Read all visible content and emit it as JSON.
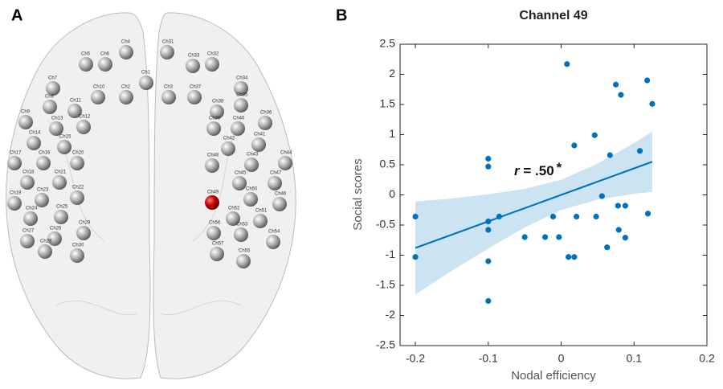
{
  "panel_a": {
    "label": "A",
    "channels": [
      "Ch4",
      "Ch5",
      "Ch6",
      "Ch1",
      "Ch7",
      "Ch10",
      "Ch2",
      "Ch8",
      "Ch11",
      "Ch9",
      "Ch12",
      "Ch13",
      "Ch14",
      "Ch15",
      "Ch16",
      "Ch20",
      "Ch17",
      "Ch18",
      "Ch21",
      "Ch22",
      "Ch23",
      "Ch19",
      "Ch24",
      "Ch25",
      "Ch29",
      "Ch27",
      "Ch26",
      "Ch30",
      "Ch28",
      "Ch31",
      "Ch33",
      "Ch32",
      "Ch3",
      "Ch37",
      "Ch34",
      "Ch35",
      "Ch38",
      "Ch36",
      "Ch39",
      "Ch40",
      "Ch41",
      "Ch42",
      "Ch43",
      "Ch44",
      "Ch48",
      "Ch45",
      "Ch47",
      "Ch49",
      "Ch50",
      "Ch46",
      "Ch52",
      "Ch51",
      "Ch56",
      "Ch53",
      "Ch54",
      "Ch57",
      "Ch55"
    ],
    "highlighted": "Ch49",
    "highlight_color": "#c00000"
  },
  "chart_data": {
    "type": "scatter",
    "panel_label": "B",
    "title": "Channel 49",
    "xlabel": "Nodal efficiency",
    "ylabel": "Social scores",
    "color": "#0072bd",
    "x": [
      -0.2,
      -0.2,
      -0.1,
      -0.1,
      -0.1,
      -0.1,
      -0.1,
      -0.1,
      -0.085,
      -0.05,
      -0.022,
      -0.011,
      -0.003,
      0.008,
      0.01,
      0.018,
      0.018,
      0.021,
      0.048,
      0.046,
      0.056,
      0.063,
      0.067,
      0.075,
      0.078,
      0.079,
      0.082,
      0.088,
      0.088,
      0.108,
      0.118,
      0.119,
      0.125
    ],
    "values": [
      -0.36,
      -1.03,
      0.6,
      0.47,
      -0.44,
      -0.58,
      -1.1,
      -1.76,
      -0.36,
      -0.7,
      -0.7,
      -0.36,
      -0.7,
      2.17,
      -1.03,
      -1.03,
      0.82,
      -0.36,
      -0.36,
      0.99,
      -0.02,
      -0.87,
      0.66,
      1.83,
      -0.18,
      -0.58,
      1.66,
      -0.18,
      -0.71,
      0.73,
      1.9,
      -0.31,
      1.51
    ],
    "fit": {
      "x": [
        -0.2,
        -0.15,
        -0.1,
        -0.05,
        0,
        0.05,
        0.1,
        0.125
      ],
      "y": [
        -0.88,
        -0.66,
        -0.44,
        -0.22,
        0,
        0.22,
        0.44,
        0.55
      ],
      "upper": [
        -0.11,
        -0.06,
        0.01,
        0.1,
        0.25,
        0.52,
        0.86,
        1.05
      ],
      "lower": [
        -1.65,
        -1.26,
        -0.89,
        -0.54,
        -0.25,
        -0.08,
        0.02,
        0.05
      ]
    },
    "annotation": {
      "variable": "r",
      "text": "= .50",
      "mark": "*"
    },
    "xlim": [
      -0.221,
      0.2
    ],
    "ylim": [
      -2.5,
      2.5
    ],
    "xticks": [
      -0.2,
      -0.1,
      0,
      0.1,
      0.2
    ],
    "yticks": [
      2.5,
      2,
      1.5,
      1,
      0.5,
      0,
      -0.5,
      -1,
      -1.5,
      -2,
      -2.5
    ]
  }
}
